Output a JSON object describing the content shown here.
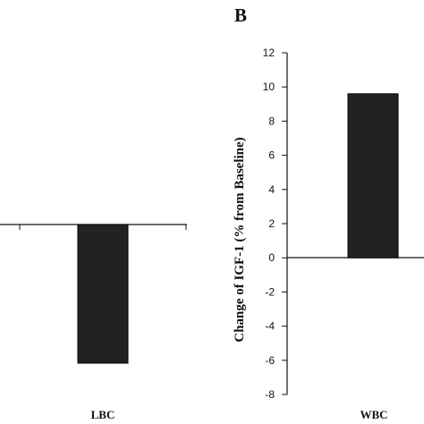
{
  "chart_data": [
    {
      "type": "bar",
      "panel_label": "",
      "categories": [
        "LBC"
      ],
      "values": [
        -6.3
      ],
      "ylim": [
        -8,
        12
      ],
      "bar_color": "#222222"
    },
    {
      "type": "bar",
      "panel_label": "B",
      "categories": [
        "WBC"
      ],
      "values": [
        9.6
      ],
      "ylabel": "Change of IGF-1 (% from Baseline)",
      "ylim": [
        -8,
        12
      ],
      "yticks": [
        12,
        10,
        8,
        6,
        4,
        2,
        0,
        -2,
        -4,
        -6,
        -8
      ],
      "bar_color": "#222222"
    }
  ]
}
